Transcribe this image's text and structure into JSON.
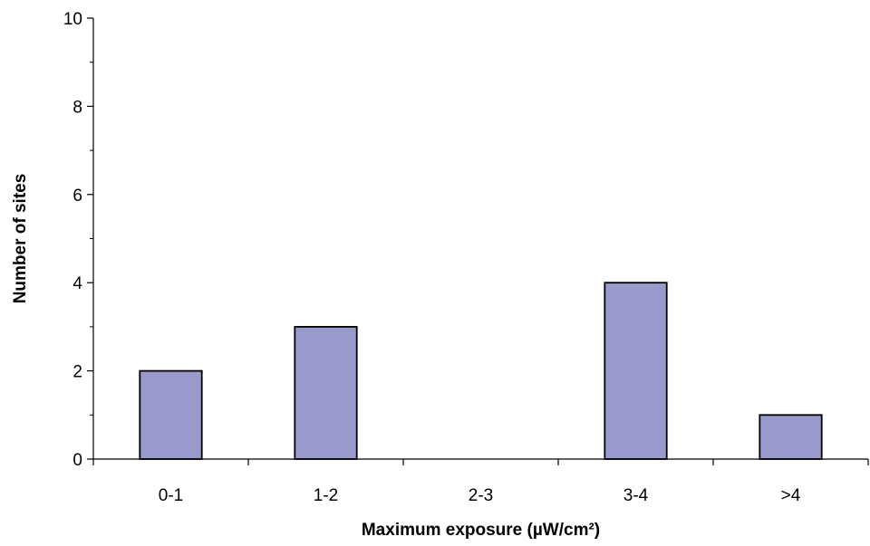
{
  "chart_data": {
    "type": "bar",
    "title": "",
    "xlabel": "Maximum exposure (µW/cm²)",
    "ylabel": "Number of sites",
    "categories": [
      "0-1",
      "1-2",
      "2-3",
      "3-4",
      ">4"
    ],
    "values": [
      2,
      3,
      0,
      4,
      1
    ],
    "ylim": [
      0,
      10
    ],
    "yticks": [
      0,
      2,
      4,
      6,
      8,
      10
    ],
    "grid": false,
    "bar_color": "#9999cc",
    "bar_edge_color": "#000000"
  }
}
